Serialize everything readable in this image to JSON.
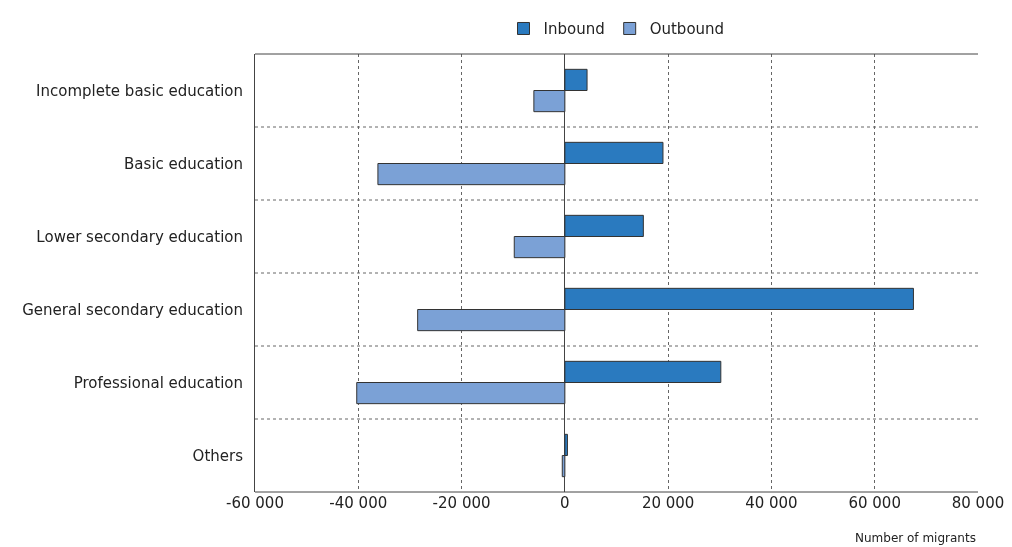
{
  "chart_data": {
    "type": "bar",
    "orientation": "horizontal",
    "xlabel": "Number of migrants",
    "categories": [
      "Incomplete basic education",
      "Basic education",
      "Lower secondary education",
      "General secondary education",
      "Professional education",
      "Others"
    ],
    "series": [
      {
        "name": "Inbound",
        "color": "#2a7abf",
        "values": [
          4300,
          19000,
          15200,
          67500,
          30200,
          500
        ]
      },
      {
        "name": "Outbound",
        "color": "#7ba1d6",
        "values": [
          -6000,
          -36200,
          -9800,
          -28500,
          -40300,
          -500
        ]
      }
    ],
    "xlim": [
      -60000,
      80000
    ],
    "xticks": [
      {
        "value": -60000,
        "label": "-60 000"
      },
      {
        "value": -40000,
        "label": "-40 000"
      },
      {
        "value": -20000,
        "label": "-20 000"
      },
      0,
      {
        "value": 20000,
        "label": "20 000"
      },
      {
        "value": 40000,
        "label": "40 000"
      },
      {
        "value": 60000,
        "label": "60 000"
      },
      {
        "value": 80000,
        "label": "80 000"
      }
    ],
    "grid": true,
    "legend": "top"
  }
}
